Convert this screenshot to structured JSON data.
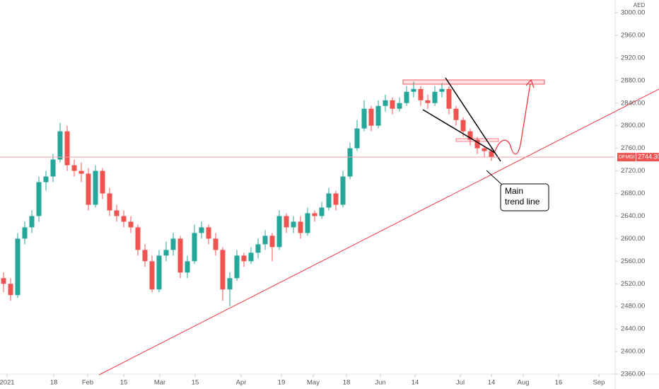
{
  "chart_data": {
    "type": "candlestick",
    "currency": "AED",
    "symbol": "DFMGI",
    "last_price": {
      "value": 2744.3,
      "label": "2744.30"
    },
    "annotation": "Main\ntrend line",
    "up_color": "#26a69a",
    "down_color": "#ef5350",
    "xlim": [
      -0.5,
      86.5
    ],
    "xticks": [
      {
        "value": 0.5,
        "label": "2021"
      },
      {
        "value": 7.1,
        "label": "18"
      },
      {
        "value": 11.9,
        "label": "Feb"
      },
      {
        "value": 17,
        "label": "15"
      },
      {
        "value": 22.1,
        "label": "Mar"
      },
      {
        "value": 27.1,
        "label": "15"
      },
      {
        "value": 33.6,
        "label": "Apr"
      },
      {
        "value": 39.3,
        "label": "19"
      },
      {
        "value": 43.8,
        "label": "May"
      },
      {
        "value": 48.5,
        "label": "18"
      },
      {
        "value": 53.3,
        "label": "Jun"
      },
      {
        "value": 58.2,
        "label": "14"
      },
      {
        "value": 64.6,
        "label": "Jul"
      },
      {
        "value": 69,
        "label": "14"
      },
      {
        "value": 73.5,
        "label": "Aug"
      },
      {
        "value": 78.5,
        "label": "16"
      },
      {
        "value": 84.2,
        "label": "Sep"
      }
    ],
    "ylim": [
      2350,
      3000
    ],
    "yticks": [
      {
        "value": 3000,
        "label": "3000.00"
      },
      {
        "value": 2960,
        "label": "2960.00"
      },
      {
        "value": 2920,
        "label": "2920.00"
      },
      {
        "value": 2880,
        "label": "2880.00"
      },
      {
        "value": 2840,
        "label": "2840.00"
      },
      {
        "value": 2800,
        "label": "2800.00"
      },
      {
        "value": 2760,
        "label": "2760.00"
      },
      {
        "value": 2720,
        "label": "2720.00"
      },
      {
        "value": 2680,
        "label": "2680.00"
      },
      {
        "value": 2640,
        "label": "2640.00"
      },
      {
        "value": 2600,
        "label": "2600.00"
      },
      {
        "value": 2560,
        "label": "2560.00"
      },
      {
        "value": 2520,
        "label": "2520.00"
      },
      {
        "value": 2480,
        "label": "2480.00"
      },
      {
        "value": 2440,
        "label": "2440.00"
      },
      {
        "value": 2400,
        "label": "2400.00"
      },
      {
        "value": 2360,
        "label": "2360.00"
      }
    ],
    "candles": [
      [
        2530,
        2540,
        2505,
        2520
      ],
      [
        2520,
        2530,
        2490,
        2500
      ],
      [
        2500,
        2610,
        2495,
        2600
      ],
      [
        2600,
        2630,
        2590,
        2620
      ],
      [
        2620,
        2650,
        2610,
        2640
      ],
      [
        2640,
        2710,
        2630,
        2700
      ],
      [
        2700,
        2720,
        2685,
        2710
      ],
      [
        2710,
        2750,
        2700,
        2740
      ],
      [
        2740,
        2805,
        2735,
        2790
      ],
      [
        2790,
        2800,
        2720,
        2730
      ],
      [
        2730,
        2740,
        2710,
        2720
      ],
      [
        2720,
        2735,
        2700,
        2715
      ],
      [
        2715,
        2725,
        2650,
        2660
      ],
      [
        2660,
        2730,
        2655,
        2720
      ],
      [
        2720,
        2725,
        2670,
        2680
      ],
      [
        2680,
        2690,
        2640,
        2650
      ],
      [
        2650,
        2660,
        2630,
        2640
      ],
      [
        2640,
        2650,
        2620,
        2630
      ],
      [
        2630,
        2640,
        2610,
        2620
      ],
      [
        2620,
        2625,
        2570,
        2580
      ],
      [
        2580,
        2590,
        2550,
        2560
      ],
      [
        2560,
        2570,
        2505,
        2510
      ],
      [
        2510,
        2580,
        2505,
        2570
      ],
      [
        2570,
        2595,
        2560,
        2580
      ],
      [
        2580,
        2610,
        2570,
        2600
      ],
      [
        2600,
        2605,
        2530,
        2540
      ],
      [
        2540,
        2570,
        2530,
        2560
      ],
      [
        2560,
        2625,
        2555,
        2610
      ],
      [
        2610,
        2630,
        2600,
        2620
      ],
      [
        2620,
        2625,
        2590,
        2600
      ],
      [
        2600,
        2610,
        2570,
        2580
      ],
      [
        2580,
        2585,
        2490,
        2510
      ],
      [
        2510,
        2540,
        2480,
        2530
      ],
      [
        2530,
        2580,
        2525,
        2570
      ],
      [
        2570,
        2575,
        2550,
        2560
      ],
      [
        2560,
        2585,
        2555,
        2575
      ],
      [
        2575,
        2600,
        2565,
        2590
      ],
      [
        2590,
        2615,
        2580,
        2605
      ],
      [
        2605,
        2610,
        2560,
        2585
      ],
      [
        2585,
        2650,
        2580,
        2640
      ],
      [
        2640,
        2645,
        2610,
        2620
      ],
      [
        2620,
        2640,
        2610,
        2630
      ],
      [
        2630,
        2640,
        2600,
        2610
      ],
      [
        2610,
        2655,
        2605,
        2645
      ],
      [
        2645,
        2650,
        2630,
        2640
      ],
      [
        2640,
        2665,
        2635,
        2655
      ],
      [
        2655,
        2690,
        2650,
        2680
      ],
      [
        2680,
        2685,
        2650,
        2660
      ],
      [
        2660,
        2720,
        2655,
        2710
      ],
      [
        2710,
        2770,
        2705,
        2760
      ],
      [
        2760,
        2810,
        2755,
        2795
      ],
      [
        2795,
        2845,
        2790,
        2830
      ],
      [
        2830,
        2835,
        2790,
        2800
      ],
      [
        2800,
        2845,
        2795,
        2835
      ],
      [
        2835,
        2855,
        2825,
        2845
      ],
      [
        2845,
        2850,
        2820,
        2830
      ],
      [
        2830,
        2850,
        2825,
        2840
      ],
      [
        2840,
        2870,
        2835,
        2860
      ],
      [
        2860,
        2878,
        2850,
        2865
      ],
      [
        2865,
        2870,
        2835,
        2845
      ],
      [
        2845,
        2855,
        2830,
        2840
      ],
      [
        2840,
        2870,
        2835,
        2860
      ],
      [
        2860,
        2875,
        2850,
        2865
      ],
      [
        2865,
        2870,
        2820,
        2830
      ],
      [
        2830,
        2835,
        2800,
        2810
      ],
      [
        2810,
        2815,
        2780,
        2790
      ],
      [
        2790,
        2795,
        2765,
        2775
      ],
      [
        2775,
        2780,
        2750,
        2760
      ],
      [
        2760,
        2765,
        2745,
        2755
      ],
      [
        2755,
        2760,
        2738,
        2744.3
      ]
    ]
  }
}
